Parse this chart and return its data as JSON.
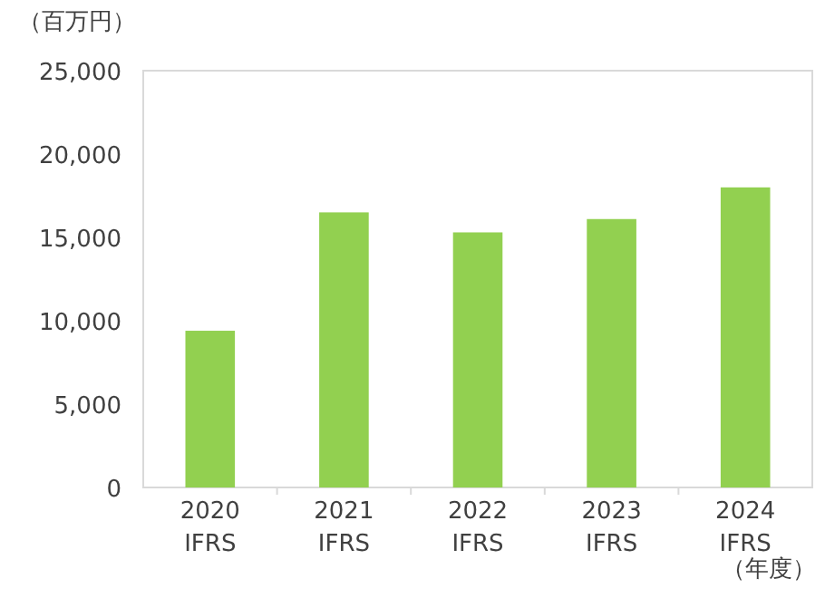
{
  "chart_data": {
    "type": "bar",
    "ylabel": "（百万円）",
    "xlabel": "（年度）",
    "categories": [
      "2020\nIFRS",
      "2021\nIFRS",
      "2022\nIFRS",
      "2023\nIFRS",
      "2024\nIFRS"
    ],
    "values": [
      9400,
      16500,
      15300,
      16100,
      18000
    ],
    "color": "#92d050",
    "ylim": [
      0,
      25000
    ],
    "yticks": [
      {
        "value": 0,
        "label": "0"
      },
      {
        "value": 5000,
        "label": "5,000"
      },
      {
        "value": 10000,
        "label": "10,000"
      },
      {
        "value": 15000,
        "label": "15,000"
      },
      {
        "value": 20000,
        "label": "20,000"
      },
      {
        "value": 25000,
        "label": "25,000"
      }
    ],
    "grid": false
  }
}
